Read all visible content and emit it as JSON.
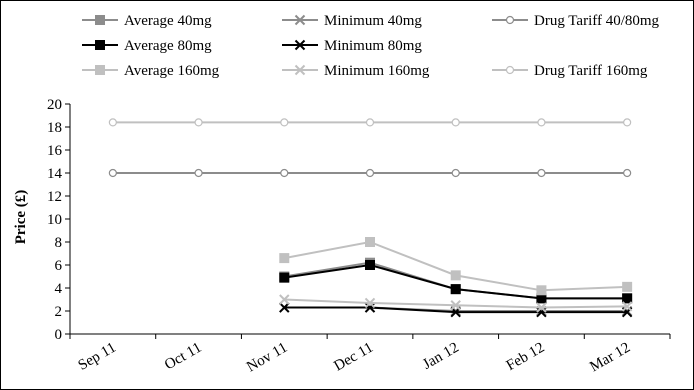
{
  "chart_data": {
    "type": "line",
    "title": "",
    "xlabel": "",
    "ylabel": "Price (£)",
    "categories": [
      "Sep 11",
      "Oct 11",
      "Nov 11",
      "Dec 11",
      "Jan 12",
      "Feb 12",
      "Mar 12"
    ],
    "ylim": [
      0,
      20
    ],
    "yticks": [
      0,
      2,
      4,
      6,
      8,
      10,
      12,
      14,
      16,
      18,
      20
    ],
    "grid": false,
    "legend_position": "top",
    "series": [
      {
        "name": "Average 40mg",
        "color": "#8c8c8c",
        "marker": "square",
        "values": [
          null,
          null,
          5.0,
          6.2,
          3.9,
          3.1,
          3.1
        ]
      },
      {
        "name": "Minimum 40mg",
        "color": "#8c8c8c",
        "marker": "x",
        "values": [
          null,
          null,
          2.3,
          2.3,
          2.0,
          2.0,
          2.0
        ]
      },
      {
        "name": "Drug Tariff 40/80mg",
        "color": "#8c8c8c",
        "marker": "circle",
        "values": [
          14.0,
          14.0,
          14.0,
          14.0,
          14.0,
          14.0,
          14.0
        ]
      },
      {
        "name": "Average 80mg",
        "color": "#000000",
        "marker": "square",
        "values": [
          null,
          null,
          4.9,
          6.0,
          3.9,
          3.1,
          3.1
        ]
      },
      {
        "name": "Minimum 80mg",
        "color": "#000000",
        "marker": "x",
        "values": [
          null,
          null,
          2.3,
          2.3,
          1.9,
          1.9,
          1.9
        ]
      },
      {
        "name": "Average 160mg",
        "color": "#c0c0c0",
        "marker": "square",
        "values": [
          null,
          null,
          6.6,
          8.0,
          5.1,
          3.8,
          4.1
        ]
      },
      {
        "name": "Minimum 160mg",
        "color": "#c0c0c0",
        "marker": "x",
        "values": [
          null,
          null,
          3.0,
          2.7,
          2.5,
          2.3,
          2.4
        ]
      },
      {
        "name": "Drug Tariff 160mg",
        "color": "#c0c0c0",
        "marker": "circle",
        "values": [
          18.4,
          18.4,
          18.4,
          18.4,
          18.4,
          18.4,
          18.4
        ]
      }
    ]
  }
}
